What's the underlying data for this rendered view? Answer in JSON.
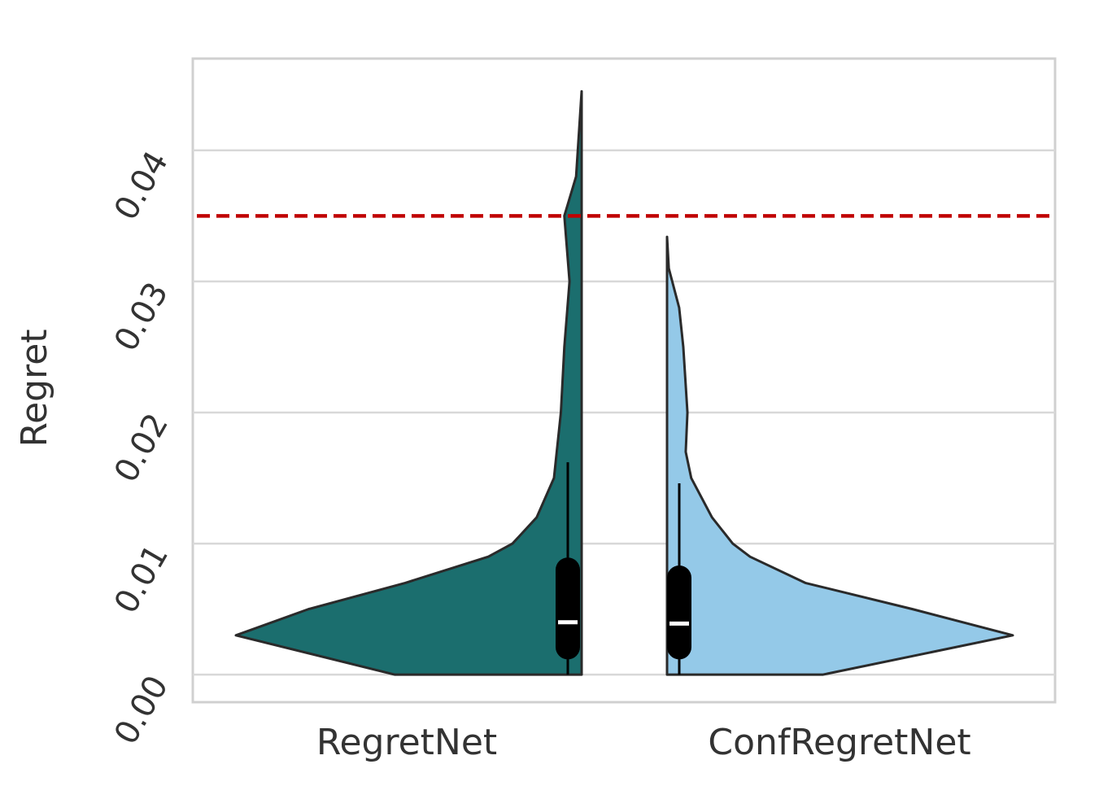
{
  "chart_data": {
    "type": "violin",
    "ylabel": "Regret",
    "categories": [
      "RegretNet",
      "ConfRegretNet"
    ],
    "ylim": [
      -0.0021,
      0.047
    ],
    "yticks": [
      {
        "value": 0,
        "label": "0.00"
      },
      0.01,
      0.02,
      0.03,
      0.04
    ],
    "grid": true,
    "reference_line": {
      "value": 0.035,
      "color": "#c00000"
    },
    "series": [
      {
        "name": "RegretNet",
        "color": "#1b6e6e",
        "side": "left",
        "density_y": [
          0,
          0.003,
          0.005,
          0.007,
          0.009,
          0.01,
          0.012,
          0.015,
          0.02,
          0.025,
          0.03,
          0.035,
          0.038,
          0.0445
        ],
        "density": [
          0.54,
          1,
          0.79,
          0.51,
          0.27,
          0.2,
          0.13,
          0.08,
          0.06,
          0.05,
          0.035,
          0.05,
          0.016,
          0
        ],
        "whisker": [
          0,
          0.0162
        ],
        "quartiles": [
          0.0021,
          0.004,
          0.008
        ]
      },
      {
        "name": "ConfRegretNet",
        "color": "#94c9e8",
        "side": "right",
        "density_y": [
          0,
          0.003,
          0.005,
          0.007,
          0.009,
          0.01,
          0.012,
          0.015,
          0.017,
          0.02,
          0.025,
          0.028,
          0.031,
          0.0334
        ],
        "density": [
          0.45,
          1,
          0.71,
          0.4,
          0.24,
          0.19,
          0.13,
          0.07,
          0.054,
          0.059,
          0.047,
          0.035,
          0.005,
          0
        ],
        "whisker": [
          0,
          0.0146
        ],
        "quartiles": [
          0.0021,
          0.0039,
          0.0074
        ]
      }
    ]
  }
}
